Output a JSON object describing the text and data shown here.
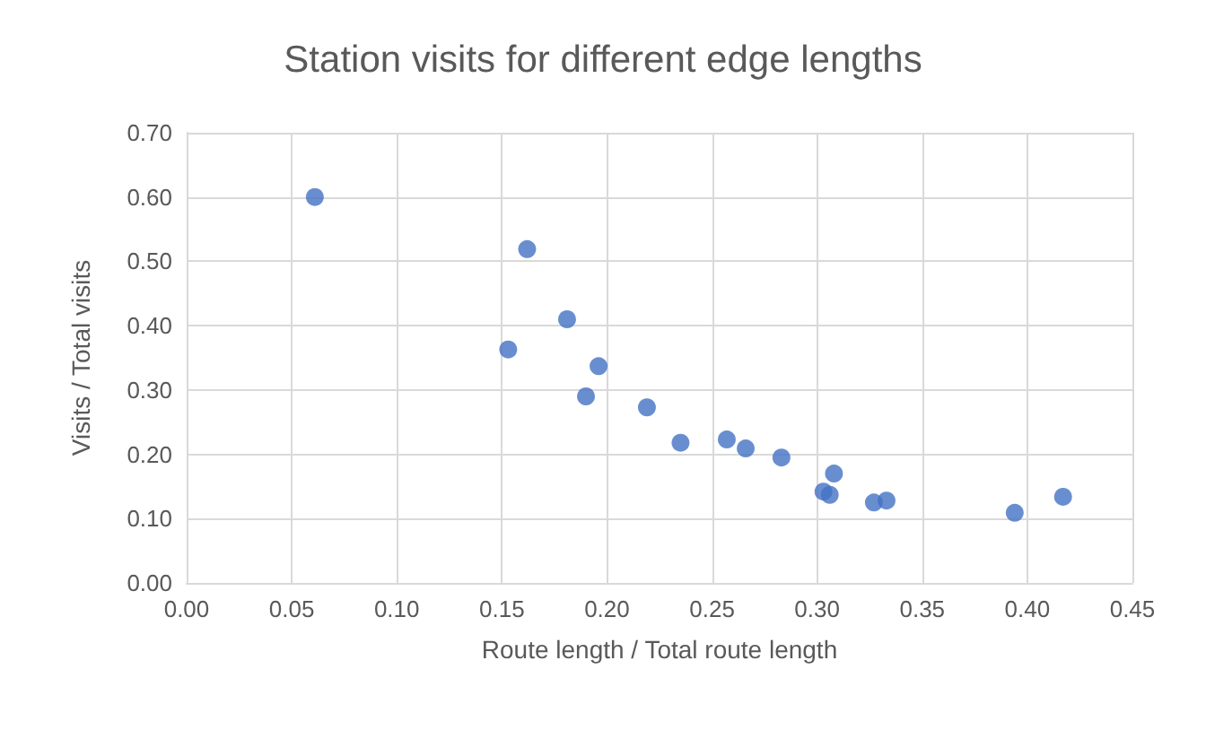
{
  "chart_data": {
    "type": "scatter",
    "title": "Station visits for different edge lengths",
    "xlabel": "Route length / Total route length",
    "ylabel": "Visits / Total visits",
    "x": [
      0.061,
      0.162,
      0.181,
      0.153,
      0.196,
      0.19,
      0.219,
      0.235,
      0.257,
      0.266,
      0.283,
      0.308,
      0.303,
      0.306,
      0.327,
      0.333,
      0.394,
      0.417
    ],
    "series": [
      {
        "color": "#4472c4",
        "values": [
          0.6,
          0.519,
          0.41,
          0.363,
          0.337,
          0.29,
          0.273,
          0.218,
          0.223,
          0.209,
          0.195,
          0.17,
          0.142,
          0.137,
          0.125,
          0.128,
          0.109,
          0.134
        ]
      }
    ],
    "xlim": [
      0,
      0.45
    ],
    "ylim": [
      0,
      0.7
    ],
    "xticks": [
      {
        "value": 0,
        "label": "0.00"
      },
      {
        "value": 0.05,
        "label": "0.05"
      },
      {
        "value": 0.1,
        "label": "0.10"
      },
      {
        "value": 0.15,
        "label": "0.15"
      },
      {
        "value": 0.2,
        "label": "0.20"
      },
      {
        "value": 0.25,
        "label": "0.25"
      },
      {
        "value": 0.3,
        "label": "0.30"
      },
      {
        "value": 0.35,
        "label": "0.35"
      },
      {
        "value": 0.4,
        "label": "0.40"
      },
      {
        "value": 0.45,
        "label": "0.45"
      }
    ],
    "yticks": [
      {
        "value": 0,
        "label": "0.00"
      },
      {
        "value": 0.1,
        "label": "0.10"
      },
      {
        "value": 0.2,
        "label": "0.20"
      },
      {
        "value": 0.3,
        "label": "0.30"
      },
      {
        "value": 0.4,
        "label": "0.40"
      },
      {
        "value": 0.5,
        "label": "0.50"
      },
      {
        "value": 0.6,
        "label": "0.60"
      },
      {
        "value": 0.7,
        "label": "0.70"
      }
    ],
    "grid": true,
    "marker": "circle"
  }
}
